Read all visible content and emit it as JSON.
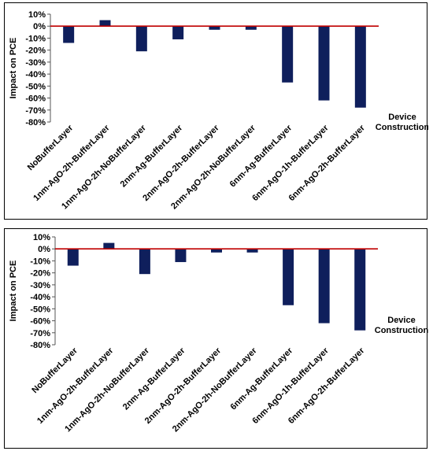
{
  "chart_data": [
    {
      "type": "bar",
      "ylabel": "Impact on PCE",
      "xlabel_line1": "Device",
      "xlabel_line2": "Construction",
      "ylim": [
        -80,
        10
      ],
      "yticks": [
        "10%",
        "0%",
        "-10%",
        "-20%",
        "-30%",
        "-40%",
        "-50%",
        "-60%",
        "-70%",
        "-80%"
      ],
      "categories": [
        "NoBufferLayer",
        "1nm-AgO-2h-BufferLayer",
        "1nm-AgO-2h-NoBufferLayer",
        "2nm-Ag-BufferLayer",
        "2nm-AgO-2h-BufferLayer",
        "2nm-AgO-2h-NoBufferLayer",
        "6nm-Ag-BufferLayer",
        "6nm-AgO-1h-BufferLayer",
        "6nm-AgO-2h-BufferLayer"
      ],
      "values": [
        -14,
        5,
        -21,
        -11,
        -3,
        -3,
        -47,
        -62,
        -68
      ],
      "bar_color": "#0f1f5c",
      "zero_line_color": "#c00000"
    },
    {
      "type": "bar",
      "ylabel": "Impact on PCE",
      "xlabel_line1": "Device",
      "xlabel_line2": "Construction",
      "ylim": [
        -80,
        10
      ],
      "yticks": [
        "10%",
        "0%",
        "-10%",
        "-20%",
        "-30%",
        "-40%",
        "-50%",
        "-60%",
        "-70%",
        "-80%"
      ],
      "categories": [
        "NoBufferLayer",
        "1nm-AgO-2h-BufferLayer",
        "1nm-AgO-2h-NoBufferLayer",
        "2nm-Ag-BufferLayer",
        "2nm-AgO-2h-BufferLayer",
        "2nm-AgO-2h-NoBufferLayer",
        "6nm-Ag-BufferLayer",
        "6nm-AgO-1h-BufferLayer",
        "6nm-AgO-2h-BufferLayer"
      ],
      "values": [
        -14,
        5,
        -21,
        -11,
        -3,
        -3,
        -47,
        -62,
        -68
      ],
      "bar_color": "#0f1f5c",
      "zero_line_color": "#c00000"
    }
  ]
}
